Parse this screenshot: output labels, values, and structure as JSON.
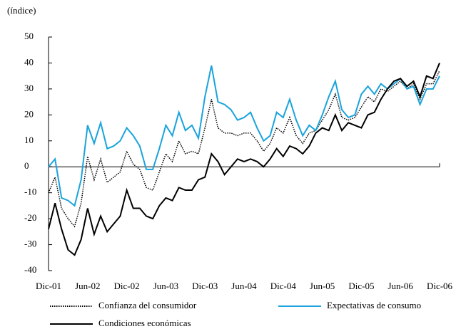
{
  "chart_data": {
    "type": "line",
    "y_label": "(índice)",
    "categories": [
      "Dic-01",
      null,
      null,
      null,
      null,
      null,
      "Jun-02",
      null,
      null,
      null,
      null,
      null,
      "Dic-02",
      null,
      null,
      null,
      null,
      null,
      "Jun-03",
      null,
      null,
      null,
      null,
      null,
      "Dic-03",
      null,
      null,
      null,
      null,
      null,
      "Jun-04",
      null,
      null,
      null,
      null,
      null,
      "Dic-04",
      null,
      null,
      null,
      null,
      null,
      "Jun-05",
      null,
      null,
      null,
      null,
      null,
      "Dic-05",
      null,
      null,
      null,
      null,
      null,
      "Jun-06",
      null,
      null,
      null,
      null,
      null,
      "Dic-06"
    ],
    "series": [
      {
        "name": "Confianza del consumidor",
        "color": "#000000",
        "style": "dotted",
        "values": [
          -10,
          -4,
          -16,
          -20,
          -23,
          -14,
          4,
          -5,
          3,
          -6,
          -4,
          -2,
          6,
          1,
          -1,
          -8,
          -9,
          -2,
          5,
          2,
          10,
          5,
          6,
          5,
          15,
          26,
          15,
          13,
          13,
          12,
          13,
          13,
          10,
          6,
          9,
          15,
          13,
          19,
          12,
          9,
          13,
          14,
          18,
          22,
          28,
          19,
          18,
          19,
          23,
          27,
          25,
          30,
          29,
          31,
          33,
          30,
          32,
          26,
          32,
          32,
          37
        ]
      },
      {
        "name": "Expectativas de consumo",
        "color": "#1aa3dc",
        "style": "solid",
        "values": [
          0,
          3,
          -12,
          -13,
          -15,
          -5,
          16,
          9,
          17,
          7,
          8,
          10,
          15,
          12,
          8,
          -1,
          -1,
          7,
          16,
          12,
          21,
          14,
          16,
          11,
          27,
          39,
          25,
          24,
          22,
          18,
          19,
          21,
          15,
          10,
          12,
          21,
          19,
          26,
          18,
          12,
          16,
          14,
          20,
          27,
          33,
          22,
          19,
          20,
          28,
          31,
          28,
          32,
          30,
          32,
          34,
          30,
          31,
          24,
          30,
          30,
          35
        ]
      },
      {
        "name": "Condiciones económicas",
        "color": "#000000",
        "style": "solid",
        "values": [
          -24,
          -14,
          -24,
          -32,
          -34,
          -28,
          -16,
          -26,
          -19,
          -25,
          -22,
          -19,
          -9,
          -16,
          -16,
          -19,
          -20,
          -15,
          -12,
          -13,
          -8,
          -9,
          -9,
          -5,
          -4,
          5,
          2,
          -3,
          0,
          3,
          2,
          3,
          2,
          0,
          3,
          7,
          4,
          8,
          7,
          5,
          8,
          13,
          15,
          14,
          20,
          14,
          17,
          16,
          15,
          20,
          21,
          26,
          30,
          33,
          34,
          31,
          33,
          27,
          35,
          34,
          40
        ]
      }
    ],
    "ylim": [
      -40,
      50
    ],
    "yticks": [
      -40,
      -30,
      -20,
      -10,
      0,
      10,
      20,
      30,
      40,
      50
    ]
  }
}
